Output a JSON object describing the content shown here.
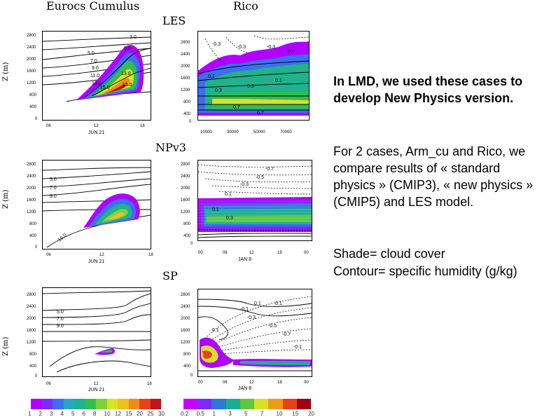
{
  "header": {
    "col_left": "Eurocs Cumulus",
    "col_right": "Rico"
  },
  "rows": [
    {
      "title": "LES",
      "ylabel": "Z (m)",
      "left_xlabel": "JUN 21",
      "right_xlabel": ""
    },
    {
      "title": "NPv3",
      "ylabel": "Z (m)",
      "left_xlabel": "JUN 21",
      "right_xlabel": "JAN  8"
    },
    {
      "title": "SP",
      "ylabel": "Z (m)",
      "left_xlabel": "JUN 21",
      "right_xlabel": "JAN  8"
    }
  ],
  "axes": {
    "left_yticks": [
      "2800",
      "2400",
      "2000",
      "1600",
      "1200",
      "800",
      "400",
      "0"
    ],
    "left_xticks": [
      "06",
      "12",
      "18"
    ],
    "rico_les_yticks": [
      "2800",
      "2400",
      "2000",
      "1600",
      "1200",
      "800",
      "400",
      "0"
    ],
    "rico_les_xticks": [
      "10000",
      "30000",
      "50000",
      "70000"
    ],
    "rico_yticks": [
      "2800",
      "2400",
      "2000",
      "1600",
      "1200",
      "800",
      "400",
      "0"
    ],
    "rico_xticks": [
      "00",
      "06",
      "12",
      "18",
      "00"
    ]
  },
  "contour_labels": {
    "les_left": [
      "3.0",
      "5.0",
      "5.0",
      "7.0",
      "9.0",
      "11.0",
      "13.0",
      "13.0",
      "15.0",
      "15.0"
    ],
    "les_right": [
      "-0.3",
      "-0.3",
      "-0.3",
      "0.4",
      "0.1",
      "0.3",
      "0.3",
      "0.1",
      "0.7",
      "0.7"
    ],
    "np_left": [
      "5.0",
      "7.0",
      "9.0",
      "15.0"
    ],
    "np_right": [
      "-0.7",
      "-0.5",
      "-0.3",
      "0.1",
      "0.1",
      "0.3"
    ],
    "sp_left": [
      "5.0",
      "7.0",
      "9.0"
    ],
    "sp_right": [
      "0.1",
      "-0.1",
      "-0.3",
      "-0.5",
      "-0.7",
      "0.1",
      "0.1",
      "-0.1"
    ]
  },
  "right_text": {
    "p1": "In LMD, we used these cases to develop New Physics version.",
    "p2": "For 2 cases, Arm_cu and Rico, we compare results of « standard physics » (CMIP3), « new physics » (CMIP5) and LES model.",
    "p3a": "Shade= cloud cover",
    "p3b": "Contour= specific humidity (g/kg)"
  },
  "colorbar_left": {
    "labels": [
      "1",
      "2",
      "3",
      "4",
      "5",
      "6",
      "8",
      "10",
      "12",
      "15",
      "20",
      "25",
      "30"
    ],
    "colors": [
      "#b000ff",
      "#7a2cff",
      "#3f6df0",
      "#2aa3c8",
      "#1fb28c",
      "#2ebf4d",
      "#7dd23a",
      "#d6e12a",
      "#f0c020",
      "#f08a1c",
      "#e8401a",
      "#c01418"
    ]
  },
  "colorbar_right": {
    "labels": [
      "0.2",
      "0.5",
      "1",
      "3",
      "5",
      "7",
      "10",
      "15",
      "20"
    ],
    "colors": [
      "#c800ff",
      "#7a2cff",
      "#2e78d8",
      "#1bae93",
      "#5cc840",
      "#d6e12a",
      "#f09a1c",
      "#e8401a",
      "#a00010"
    ]
  }
}
